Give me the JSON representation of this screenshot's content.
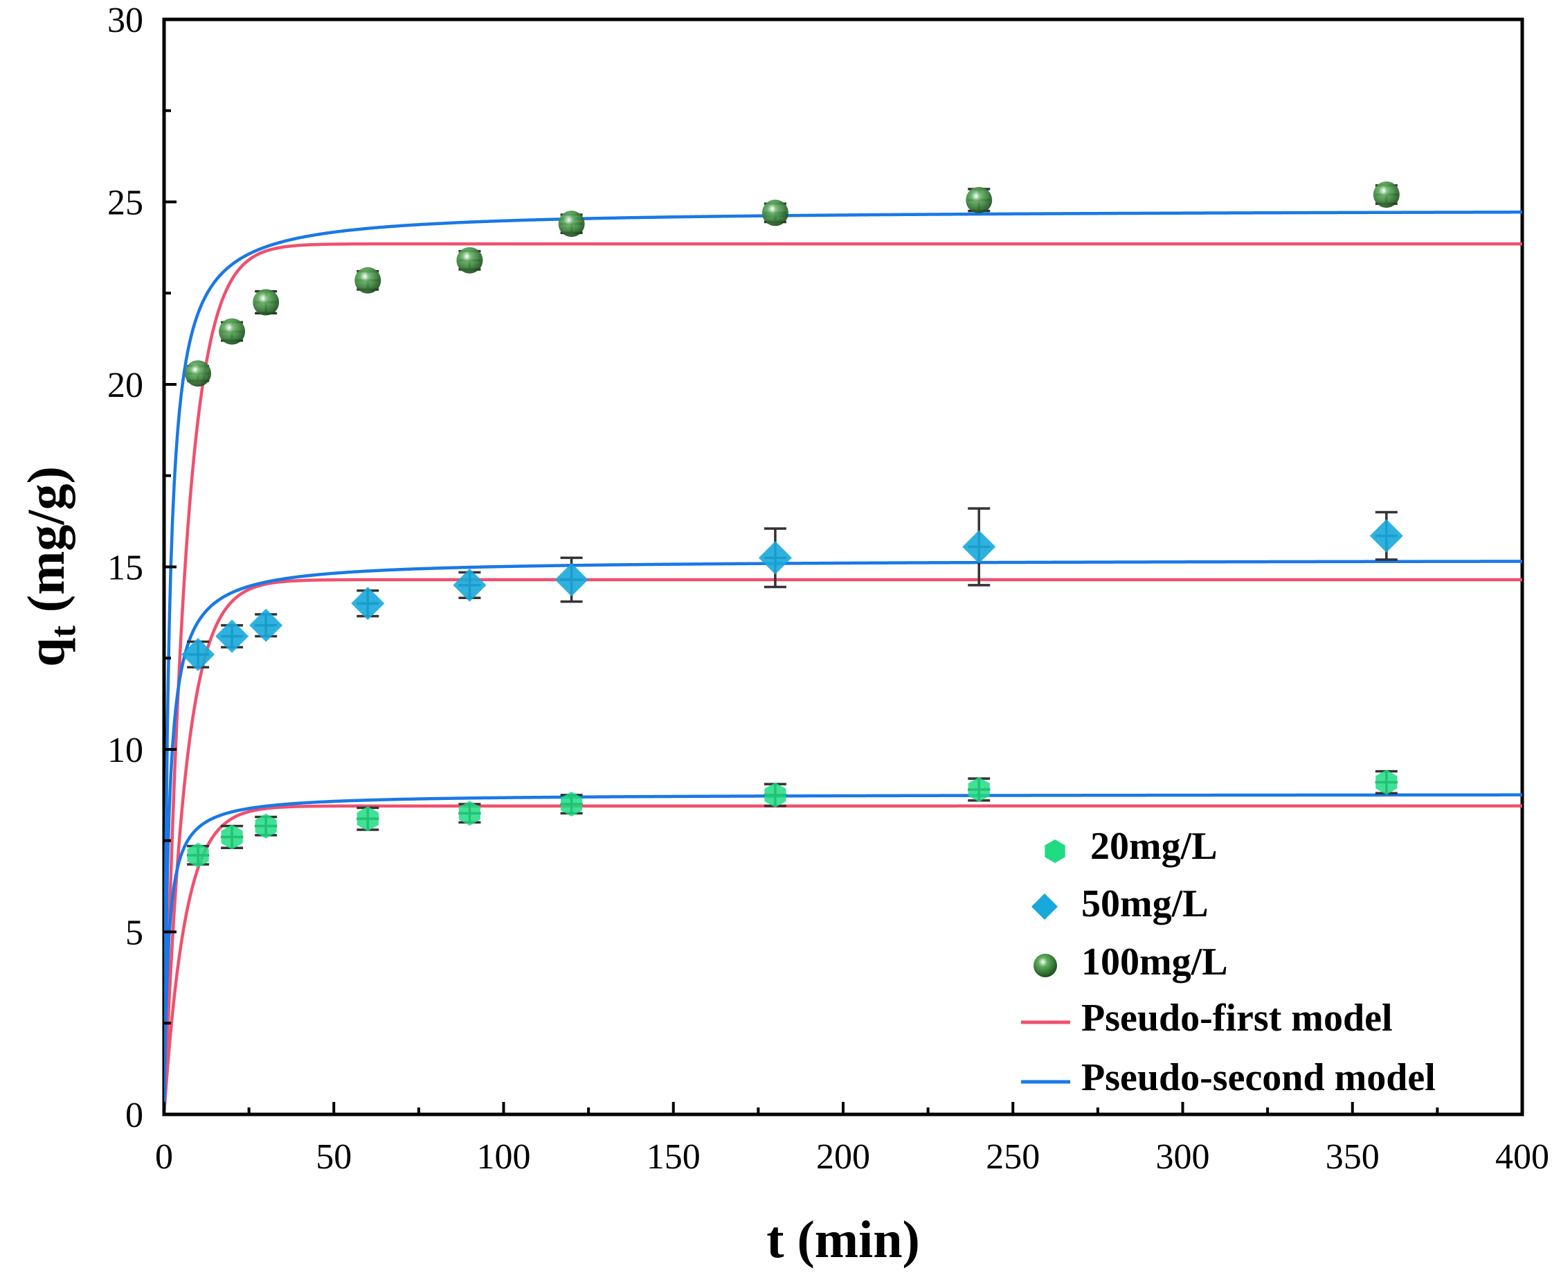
{
  "chart_data": {
    "type": "scatter",
    "title": "",
    "xlabel": "t (min)",
    "ylabel_main": "q",
    "ylabel_sub": "t",
    "ylabel_unit": " (mg/g)",
    "xlim": [
      0,
      400
    ],
    "ylim": [
      0,
      30
    ],
    "x_ticks": [
      "0",
      "50",
      "100",
      "150",
      "200",
      "250",
      "300",
      "350",
      "400"
    ],
    "y_ticks": [
      "0",
      "5",
      "10",
      "15",
      "20",
      "25",
      "30"
    ],
    "grid": false,
    "legend_position": "lower-right",
    "x": [
      10,
      20,
      30,
      60,
      90,
      120,
      180,
      240,
      360
    ],
    "series": [
      {
        "name": "20mg/L",
        "marker": "hexagon",
        "color": "#1fdc82",
        "values": [
          7.1,
          7.6,
          7.9,
          8.1,
          8.25,
          8.5,
          8.75,
          8.9,
          9.1
        ],
        "errors": [
          0.25,
          0.3,
          0.25,
          0.3,
          0.25,
          0.25,
          0.3,
          0.3,
          0.3
        ]
      },
      {
        "name": "50mg/L",
        "marker": "diamond",
        "color": "#18a8dc",
        "values": [
          12.6,
          13.1,
          13.4,
          14.0,
          14.5,
          14.65,
          15.25,
          15.55,
          15.85
        ],
        "errors": [
          0.35,
          0.3,
          0.3,
          0.35,
          0.35,
          0.6,
          0.8,
          1.05,
          0.65
        ]
      },
      {
        "name": "100mg/L",
        "marker": "sphere",
        "color": "#2d7a2d",
        "values": [
          20.3,
          21.45,
          22.25,
          22.85,
          23.4,
          24.4,
          24.7,
          25.05,
          25.2
        ],
        "errors": [
          0.2,
          0.25,
          0.3,
          0.25,
          0.25,
          0.25,
          0.25,
          0.3,
          0.25
        ]
      }
    ],
    "models": [
      {
        "name": "Pseudo-first model",
        "color": "#f0506e",
        "qe": [
          8.45,
          14.65,
          23.85
        ],
        "k1": [
          0.16,
          0.16,
          0.16
        ]
      },
      {
        "name": "Pseudo-second model",
        "color": "#1a78e6",
        "qe": [
          8.78,
          15.2,
          24.8
        ],
        "k2": [
          0.096,
          0.052,
          0.031
        ]
      }
    ]
  }
}
